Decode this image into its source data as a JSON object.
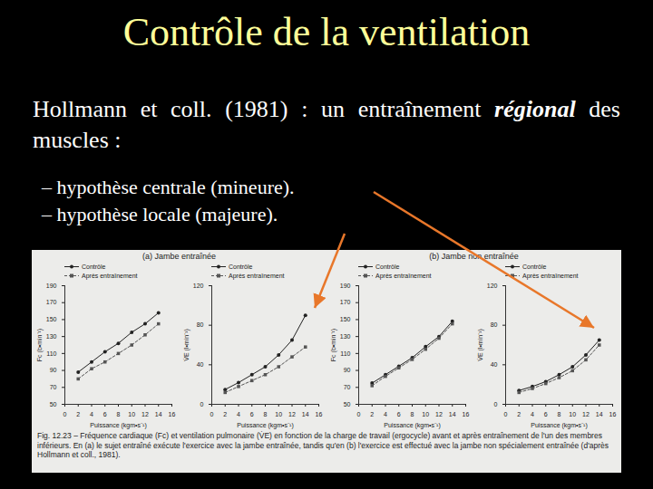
{
  "slide": {
    "title": "Contrôle de la ventilation",
    "intro_before": "Hollmann et coll. (1981) : un entraînement ",
    "intro_emphasis": "régional",
    "intro_after": " des muscles :",
    "bullets": [
      "– hypothèse centrale (mineure).",
      "– hypothèse locale (majeure)."
    ],
    "panel_titles": [
      "(a) Jambe entraînée",
      "(b) Jambe non entraînée"
    ],
    "caption": "Fig. 12.23 – Fréquence cardiaque (Fc) et ventilation pulmonaire (V̇E) en fonction de la charge de travail (ergocycle) avant et après entraînement de l'un des membres inférieurs. En (a) le sujet entraîné exécute l'exercice avec la jambe entraînée, tandis qu'en (b) l'exercice est effectué avec la jambe non spécialement entraînée (d'après Hollmann et coll., 1981)."
  },
  "chart_data": [
    {
      "type": "line",
      "x_label": "Puissance (kgm•s⁻¹)",
      "y_label": "Fc (b•min⁻¹)",
      "legend": "top-left",
      "x": [
        2,
        4,
        6,
        8,
        10,
        12,
        14
      ],
      "series": [
        {
          "name": "Contrôle",
          "color": "#222222",
          "marker": "circle",
          "line_style": "solid",
          "values": [
            88,
            100,
            112,
            122,
            135,
            145,
            158
          ]
        },
        {
          "name": "Après entraînement",
          "color": "#555555",
          "marker": "square",
          "line_style": "dashed",
          "values": [
            80,
            92,
            100,
            110,
            120,
            132,
            145
          ]
        }
      ],
      "xlim": [
        0,
        16
      ],
      "xticks": [
        0,
        2,
        4,
        6,
        8,
        10,
        12,
        14,
        16
      ],
      "ylim": [
        50,
        190
      ],
      "yticks": [
        50,
        70,
        90,
        110,
        130,
        150,
        170,
        190
      ]
    },
    {
      "type": "line",
      "x_label": "Puissance (kgm•s⁻¹)",
      "y_label": "V̇E (l•min⁻¹)",
      "legend": "top-left",
      "x": [
        2,
        4,
        6,
        8,
        10,
        12,
        14
      ],
      "series": [
        {
          "name": "Contrôle",
          "color": "#222222",
          "marker": "circle",
          "line_style": "solid",
          "values": [
            15,
            22,
            30,
            38,
            50,
            65,
            90
          ]
        },
        {
          "name": "Après entraînement",
          "color": "#555555",
          "marker": "square",
          "line_style": "dashed",
          "values": [
            12,
            18,
            24,
            30,
            38,
            48,
            58
          ]
        }
      ],
      "xlim": [
        0,
        16
      ],
      "xticks": [
        0,
        2,
        4,
        6,
        8,
        10,
        12,
        14,
        16
      ],
      "ylim": [
        0,
        120
      ],
      "yticks": [
        0,
        40,
        80,
        120
      ]
    },
    {
      "type": "line",
      "x_label": "Puissance (kgm•s⁻¹)",
      "y_label": "Fc (b•min⁻¹)",
      "legend": "top-left",
      "x": [
        2,
        4,
        6,
        8,
        10,
        12,
        14
      ],
      "series": [
        {
          "name": "Contrôle",
          "color": "#222222",
          "marker": "circle",
          "line_style": "solid",
          "values": [
            75,
            85,
            95,
            105,
            118,
            130,
            148
          ]
        },
        {
          "name": "Après entraînement",
          "color": "#555555",
          "marker": "square",
          "line_style": "dashed",
          "values": [
            72,
            83,
            93,
            103,
            115,
            128,
            145
          ]
        }
      ],
      "xlim": [
        0,
        16
      ],
      "xticks": [
        0,
        2,
        4,
        6,
        8,
        10,
        12,
        14,
        16
      ],
      "ylim": [
        50,
        190
      ],
      "yticks": [
        50,
        70,
        90,
        110,
        130,
        150,
        170,
        190
      ]
    },
    {
      "type": "line",
      "x_label": "Puissance (kgm•s⁻¹)",
      "y_label": "V̇E (l•min⁻¹)",
      "legend": "top-left",
      "x": [
        2,
        4,
        6,
        8,
        10,
        12,
        14
      ],
      "series": [
        {
          "name": "Contrôle",
          "color": "#222222",
          "marker": "circle",
          "line_style": "solid",
          "values": [
            14,
            18,
            23,
            30,
            38,
            50,
            65
          ]
        },
        {
          "name": "Après entraînement",
          "color": "#555555",
          "marker": "square",
          "line_style": "dashed",
          "values": [
            12,
            16,
            21,
            27,
            34,
            45,
            60
          ]
        }
      ],
      "xlim": [
        0,
        16
      ],
      "xticks": [
        0,
        2,
        4,
        6,
        8,
        10,
        12,
        14,
        16
      ],
      "ylim": [
        0,
        120
      ],
      "yticks": [
        0,
        40,
        80,
        120
      ]
    }
  ]
}
